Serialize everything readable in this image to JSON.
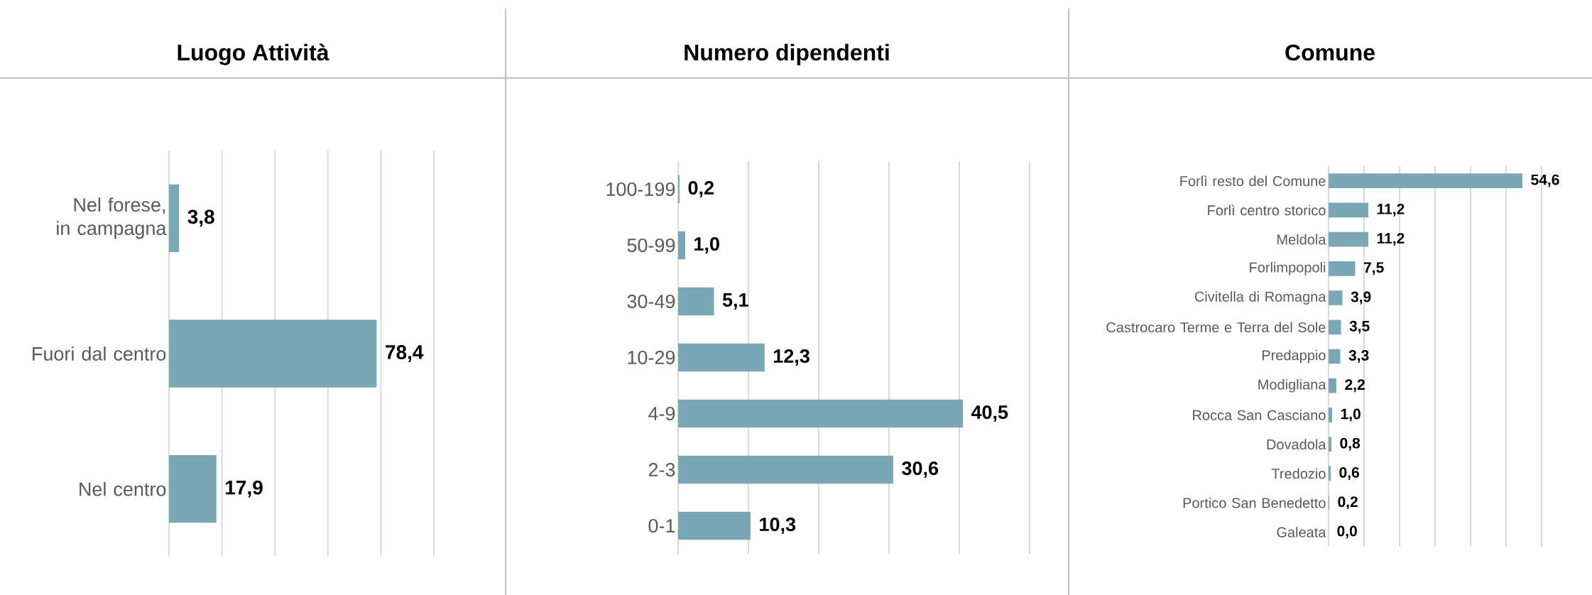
{
  "chart_data": [
    {
      "type": "bar",
      "orientation": "horizontal",
      "title": "Luogo Attività",
      "categories": [
        "Nel forese, in campagna",
        "Fuori dal centro",
        "Nel centro"
      ],
      "values": [
        3.8,
        78.4,
        17.9
      ],
      "value_labels": [
        "3,8",
        "78,4",
        "17,9"
      ],
      "color": "#7aa7b6",
      "xlim": [
        0,
        100
      ],
      "xticks": [
        {
          "value": 0,
          "label": null
        },
        {
          "value": 20,
          "label": null
        },
        {
          "value": 40,
          "label": null
        },
        {
          "value": 60,
          "label": null
        },
        {
          "value": 80,
          "label": null
        },
        {
          "value": 100,
          "label": null
        }
      ],
      "grid": "x",
      "tick_labels": "y"
    },
    {
      "type": "bar",
      "orientation": "horizontal",
      "title": "Numero dipendenti",
      "categories": [
        "100-199",
        "50-99",
        "30-49",
        "10-29",
        "4-9",
        "2-3",
        "0-1"
      ],
      "values": [
        0.2,
        1.0,
        5.1,
        12.3,
        40.5,
        30.6,
        10.3
      ],
      "value_labels": [
        "0,2",
        "1,0",
        "5,1",
        "12,3",
        "40,5",
        "30,6",
        "10,3"
      ],
      "color": "#7aa7b6",
      "xlim": [
        0,
        50
      ],
      "xticks": [
        {
          "value": 0,
          "label": null
        },
        {
          "value": 10,
          "label": null
        },
        {
          "value": 20,
          "label": null
        },
        {
          "value": 30,
          "label": null
        },
        {
          "value": 40,
          "label": null
        },
        {
          "value": 50,
          "label": null
        }
      ],
      "grid": "x",
      "tick_labels": "y"
    },
    {
      "type": "bar",
      "orientation": "horizontal",
      "title": "Comune",
      "categories": [
        "Forlì resto del Comune",
        "Forlì centro storico",
        "Meldola",
        "Forlimpopoli",
        "Civitella di Romagna",
        "Castrocaro Terme e Terra del Sole",
        "Predappio",
        "Modigliana",
        "Rocca San Casciano",
        "Dovadola",
        "Tredozio",
        "Portico San Benedetto",
        "Galeata"
      ],
      "values": [
        54.6,
        11.2,
        11.2,
        7.5,
        3.9,
        3.5,
        3.3,
        2.2,
        1.0,
        0.8,
        0.6,
        0.2,
        0.0
      ],
      "value_labels": [
        "54,6",
        "11,2",
        "11,2",
        "7,5",
        "3,9",
        "3,5",
        "3,3",
        "2,2",
        "1,0",
        "0,8",
        "0,6",
        "0,2",
        "0,0"
      ],
      "color": "#7aa7b6",
      "xlim": [
        0,
        60
      ],
      "xticks": [
        {
          "value": 0,
          "label": null
        },
        {
          "value": 10,
          "label": null
        },
        {
          "value": 20,
          "label": null
        },
        {
          "value": 30,
          "label": null
        },
        {
          "value": 40,
          "label": null
        },
        {
          "value": 50,
          "label": null
        },
        {
          "value": 60,
          "label": null
        }
      ],
      "grid": "x",
      "tick_labels": "y"
    }
  ]
}
